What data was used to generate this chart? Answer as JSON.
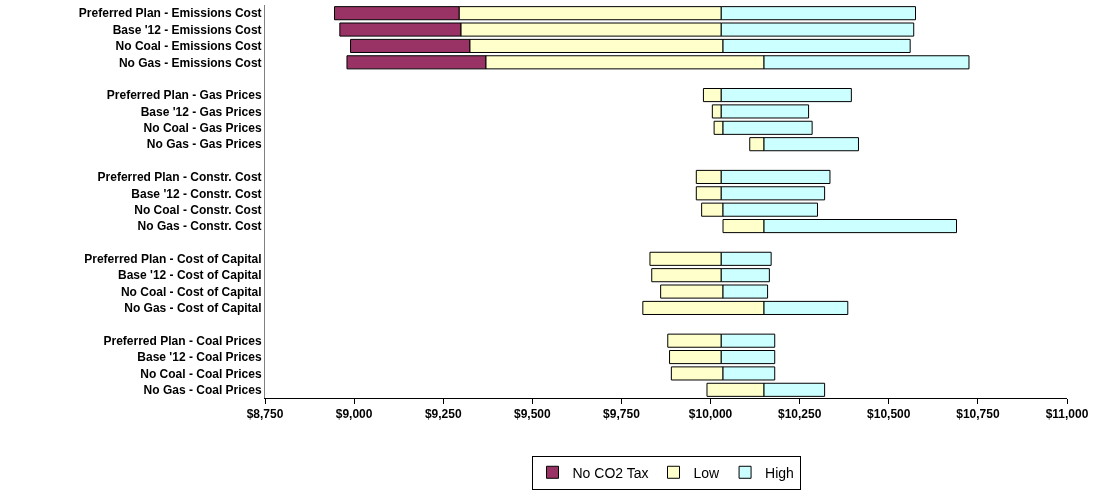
{
  "chart_data": {
    "type": "bar",
    "orientation": "horizontal",
    "categories": [
      "Preferred Plan - Emissions Cost",
      "Base '12 - Emissions Cost",
      "No Coal - Emissions Cost",
      "No Gas - Emissions Cost",
      null,
      "Preferred Plan - Gas Prices",
      "Base '12 - Gas Prices",
      "No Coal - Gas Prices",
      "No Gas - Gas Prices",
      null,
      "Preferred Plan - Constr. Cost",
      "Base '12 - Constr. Cost",
      "No Coal - Constr. Cost",
      "No Gas - Constr. Cost",
      null,
      "Preferred Plan - Cost of Capital",
      "Base '12 - Cost of Capital",
      "No Coal - Cost of Capital",
      "No Gas - Cost of Capital",
      null,
      "Preferred Plan - Coal Prices",
      "Base '12 - Coal Prices",
      "No Coal - Coal Prices",
      "No Gas - Coal Prices"
    ],
    "series": [
      {
        "name": "No CO2 Tax",
        "color": "#993366",
        "base": [
          8945,
          8960,
          8990,
          8980,
          null,
          null,
          null,
          null,
          null,
          null,
          null,
          null,
          null,
          null,
          null,
          null,
          null,
          null,
          null,
          null,
          null,
          null,
          null,
          null
        ],
        "values": [
          350,
          340,
          335,
          390,
          null,
          null,
          null,
          null,
          null,
          null,
          null,
          null,
          null,
          null,
          null,
          null,
          null,
          null,
          null,
          null,
          null,
          null,
          null,
          null
        ]
      },
      {
        "name": "Low",
        "color": "#ffffcc",
        "base": [
          9295,
          9300,
          9325,
          9370,
          null,
          9980,
          10005,
          10010,
          10110,
          null,
          9960,
          9960,
          9975,
          10035,
          null,
          9830,
          9835,
          9860,
          9810,
          null,
          9880,
          9885,
          9890,
          9990
        ],
        "values": [
          735,
          730,
          710,
          780,
          null,
          50,
          25,
          25,
          40,
          null,
          70,
          70,
          60,
          115,
          null,
          200,
          195,
          175,
          340,
          null,
          150,
          145,
          145,
          160
        ]
      },
      {
        "name": "High",
        "color": "#ccffff",
        "base": [
          10030,
          10030,
          10035,
          10150,
          null,
          10030,
          10030,
          10035,
          10150,
          null,
          10030,
          10030,
          10035,
          10150,
          null,
          10030,
          10030,
          10035,
          10150,
          null,
          10030,
          10030,
          10035,
          10150
        ],
        "values": [
          545,
          540,
          525,
          575,
          null,
          365,
          245,
          250,
          265,
          null,
          305,
          290,
          265,
          540,
          null,
          140,
          135,
          125,
          235,
          null,
          150,
          150,
          145,
          170
        ]
      }
    ],
    "xlim": [
      8750,
      11000
    ],
    "xticks": [
      {
        "value": 8750,
        "label": "$8,750"
      },
      {
        "value": 9000,
        "label": "$9,000"
      },
      {
        "value": 9250,
        "label": "$9,250"
      },
      {
        "value": 9500,
        "label": "$9,500"
      },
      {
        "value": 9750,
        "label": "$9,750"
      },
      {
        "value": 10000,
        "label": "$10,000"
      },
      {
        "value": 10250,
        "label": "$10,250"
      },
      {
        "value": 10500,
        "label": "$10,500"
      },
      {
        "value": 10750,
        "label": "$10,750"
      },
      {
        "value": 11000,
        "label": "$11,000"
      }
    ],
    "grid": false,
    "legend": "bottom"
  }
}
